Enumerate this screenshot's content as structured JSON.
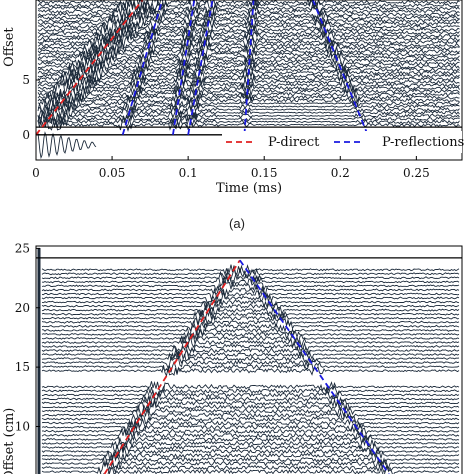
{
  "caption": "(a)",
  "chart_data": [
    {
      "type": "line",
      "title": "",
      "xlabel": "Time (ms)",
      "ylabel": "Offset",
      "xlim": [
        0,
        0.28
      ],
      "ylim": [
        -2.3,
        12.3
      ],
      "x_ticks": [
        0,
        0.05,
        0.1,
        0.15,
        0.2,
        0.25
      ],
      "x_tick_labels": [
        "0",
        "0.05",
        "0.1",
        "0.15",
        "0.2",
        "0.25"
      ],
      "y_ticks": [
        0,
        5
      ],
      "y_tick_labels": [
        "0",
        "5"
      ],
      "grid": false,
      "legend": {
        "placement": "bottom-right",
        "entries": [
          "P-direct",
          "P-reflections"
        ]
      },
      "series": [
        {
          "name": "P-direct",
          "style": "dashed",
          "color": "#e02020",
          "segments": [
            [
              [
                0,
                0
              ],
              [
                0.07,
                12.3
              ]
            ]
          ]
        },
        {
          "name": "P-reflections",
          "style": "dashed",
          "color": "#1a1ae0",
          "segments": [
            [
              [
                0.057,
                0
              ],
              [
                0.083,
                12.3
              ]
            ],
            [
              [
                0.09,
                0
              ],
              [
                0.104,
                12.3
              ]
            ],
            [
              [
                0.1,
                0
              ],
              [
                0.116,
                12.3
              ]
            ],
            [
              [
                0.137,
                0
              ],
              [
                0.143,
                12.3
              ]
            ],
            [
              [
                0.218,
                0
              ],
              [
                0.182,
                12.3
              ]
            ]
          ]
        }
      ],
      "reference_lines": [
        0.7,
        0
      ],
      "trace_color": "#1c2a3a"
    },
    {
      "type": "line",
      "title": "",
      "xlabel": "",
      "ylabel": "Offset (cm)",
      "xlim": [
        0,
        0.28
      ],
      "ylim": [
        6,
        25.2
      ],
      "y_ticks": [
        10,
        15,
        20,
        25
      ],
      "y_tick_labels": [
        "10",
        "15",
        "20",
        "25"
      ],
      "grid": false,
      "series": [
        {
          "name": "",
          "style": "dashed",
          "color": "#e02020",
          "segments": [
            [
              [
                0.045,
                6.0
              ],
              [
                0.134,
                24.0
              ]
            ]
          ]
        },
        {
          "name": "",
          "style": "dashed",
          "color": "#1a1ae0",
          "segments": [
            [
              [
                0.134,
                24.0
              ],
              [
                0.232,
                6.0
              ]
            ]
          ]
        }
      ],
      "reference_lines": [
        24.2
      ],
      "trace_color": "#1c2a3a"
    }
  ]
}
